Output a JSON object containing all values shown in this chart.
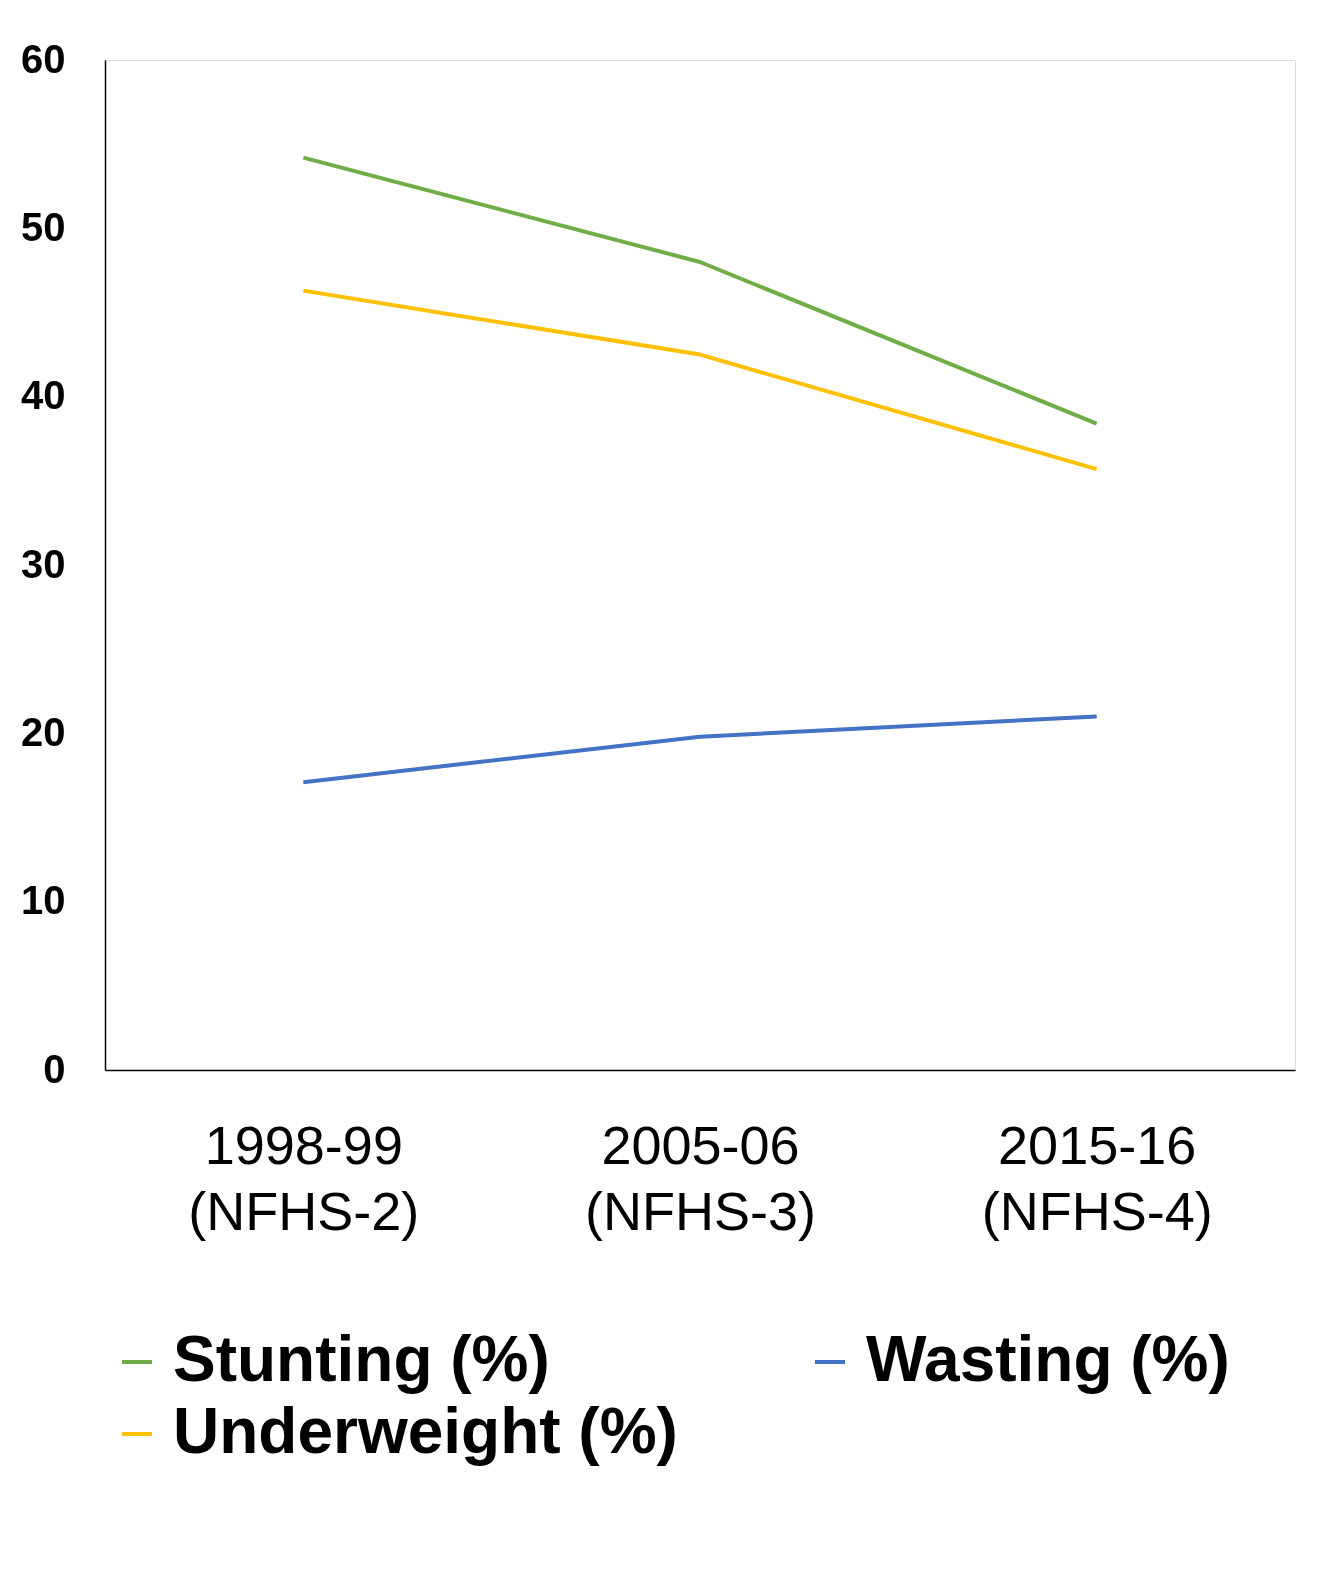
{
  "chart_data": {
    "type": "line",
    "categories": [
      "1998-99\n(NFHS-2)",
      "2005-06\n(NFHS-3)",
      "2015-16\n(NFHS-4)"
    ],
    "series": [
      {
        "name": "Stunting (%)",
        "color": "#70ad47",
        "values": [
          54.2,
          48.0,
          38.4
        ]
      },
      {
        "name": "Wasting (%)",
        "color": "#4472c4",
        "values": [
          17.1,
          19.8,
          21.0
        ]
      },
      {
        "name": "Underweight (%)",
        "color": "#ffc000",
        "values": [
          46.3,
          42.5,
          35.7
        ]
      }
    ],
    "ylim": [
      0,
      60
    ],
    "yticks": [
      0,
      10,
      20,
      30,
      40,
      50,
      60
    ],
    "grid": false,
    "legend": "bottom",
    "marker": "none",
    "line_style": "solid"
  }
}
